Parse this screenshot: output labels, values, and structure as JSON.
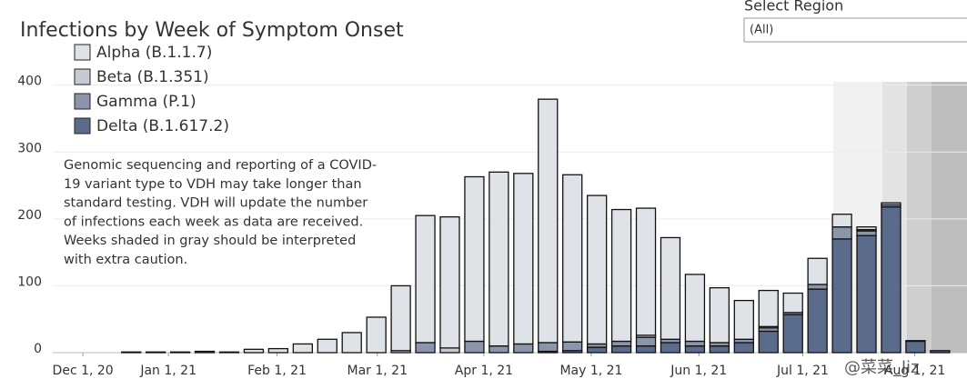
{
  "chart_data": {
    "type": "bar",
    "stacked": true,
    "title": "Infections by Week of Symptom Onset",
    "annotation": [
      "Genomic sequencing and reporting of a COVID-",
      "19 variant type to VDH may take longer than",
      "standard testing. VDH will update the number",
      "of infections each week as data are received.",
      "Weeks shaded in gray should be interpreted",
      "with extra caution."
    ],
    "categories": [
      null,
      null,
      null,
      null,
      null,
      null,
      null,
      null,
      null,
      null,
      null,
      null,
      null,
      null,
      null,
      null,
      null,
      null,
      null,
      null,
      null,
      null,
      null,
      null,
      null,
      null,
      null,
      null,
      null,
      null,
      null,
      null,
      null,
      null
    ],
    "series": [
      {
        "name": "Delta (B.1.617.2)",
        "color": "#5b6b8b",
        "values": [
          0,
          0,
          0,
          2,
          0,
          0,
          0,
          0,
          0,
          0,
          0,
          0,
          0,
          0,
          0,
          0,
          0,
          2,
          3,
          8,
          10,
          10,
          15,
          10,
          10,
          15,
          32,
          57,
          95,
          170,
          175,
          218,
          17,
          3
        ]
      },
      {
        "name": "Gamma (P.1)",
        "color": "#8c96aa",
        "values": [
          0,
          0,
          0,
          0,
          0,
          0,
          0,
          0,
          0,
          0,
          0,
          0,
          15,
          0,
          17,
          10,
          13,
          13,
          13,
          5,
          7,
          13,
          5,
          7,
          5,
          5,
          5,
          3,
          7,
          18,
          7,
          3,
          0,
          0
        ]
      },
      {
        "name": "Beta (B.1.351)",
        "color": "#c5cad3",
        "values": [
          0,
          0,
          0,
          0,
          0,
          0,
          0,
          0,
          0,
          0,
          0,
          3,
          0,
          7,
          0,
          0,
          0,
          0,
          0,
          0,
          0,
          3,
          0,
          0,
          0,
          0,
          2,
          0,
          0,
          0,
          2,
          0,
          0,
          0
        ]
      },
      {
        "name": "Alpha (B.1.1.7)",
        "color": "#dfe2e7",
        "values": [
          1,
          1,
          1,
          0,
          1,
          5,
          6,
          13,
          20,
          30,
          53,
          97,
          190,
          196,
          246,
          260,
          255,
          364,
          250,
          222,
          197,
          190,
          152,
          100,
          82,
          58,
          54,
          29,
          39,
          19,
          4,
          3,
          1,
          0
        ]
      }
    ],
    "xlim": [
      -3.2,
      34.1
    ],
    "xticks": [
      {
        "value": -1.97,
        "label": "Dec 1, 20"
      },
      {
        "value": 1.52,
        "label": "Jan 1, 21"
      },
      {
        "value": 5.95,
        "label": "Feb 1, 21"
      },
      {
        "value": 10.04,
        "label": "Mar 1, 21"
      },
      {
        "value": 14.39,
        "label": "Apr 1, 21"
      },
      {
        "value": 18.77,
        "label": "May 1, 21"
      },
      {
        "value": 23.16,
        "label": "Jun 1, 21"
      },
      {
        "value": 27.4,
        "label": "Jul 1, 21"
      },
      {
        "value": 31.97,
        "label": "Aug 1, 21"
      }
    ],
    "ylim": [
      0,
      405
    ],
    "yticks": [
      0,
      100,
      200,
      300,
      400
    ],
    "grid": true
  },
  "filter": {
    "label": "Select Region",
    "value": "(All)"
  },
  "watermark": "@菜菜_liz"
}
